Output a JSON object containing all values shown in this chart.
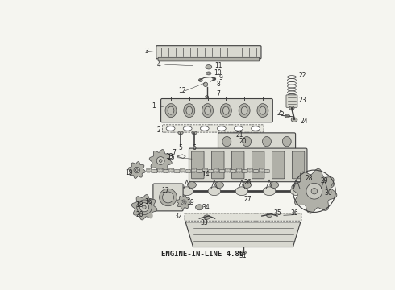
{
  "title": "ENGINE-IN-LINE 4.8L",
  "title_fontsize": 6.5,
  "title_fontweight": "bold",
  "background_color": "#f5f5f0",
  "face_color": "#d8d8d0",
  "dark_color": "#b0b0a8",
  "line_color": "#404040",
  "text_color": "#222222",
  "figsize": [
    4.9,
    3.6
  ],
  "dpi": 100
}
